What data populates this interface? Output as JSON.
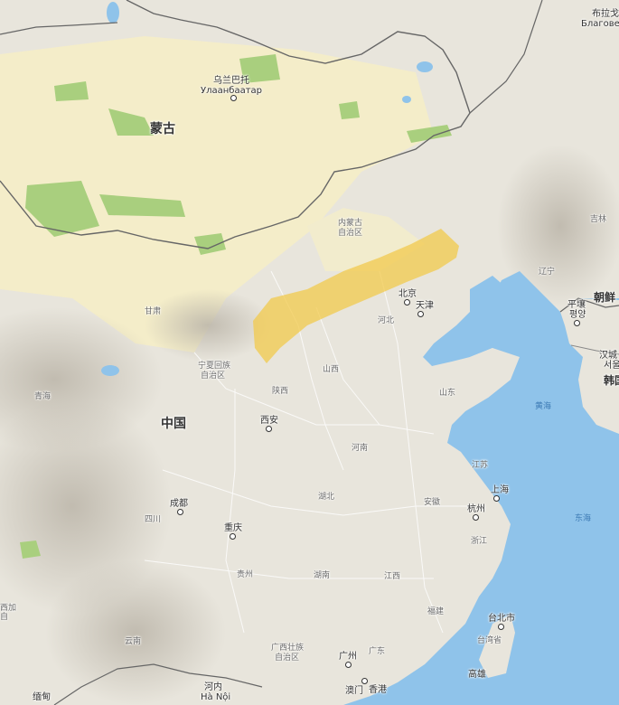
{
  "map": {
    "highlight_color": "#f2c94c",
    "water_color": "#8fc3ea",
    "land_color": "#e8e5dc",
    "desert_color": "#f4edc9",
    "park_color": "#a9cf7e",
    "labels": {
      "mongolia": "蒙古",
      "china": "中国",
      "ulaanbaatar_cn": "乌兰巴托",
      "ulaanbaatar_mn": "Улаанбаатар",
      "blagoveshchensk_cn": "布拉戈",
      "blagoveshchensk_ru": "Благовеще",
      "inner_mongolia_1": "内蒙古",
      "inner_mongolia_2": "自治区",
      "jilin": "吉林",
      "liaoning": "辽宁",
      "beijing": "北京",
      "tianjin": "天津",
      "hebei": "河北",
      "pyongyang_1": "平壤",
      "pyongyang_2": "평양",
      "north_korea": "朝鲜",
      "seoul_1": "汉城",
      "seoul_2": "서울",
      "south_korea": "韩国",
      "gansu": "甘肃",
      "ningxia_1": "宁夏回族",
      "ningxia_2": "自治区",
      "shanxi": "山西",
      "shandong": "山东",
      "yellow_sea": "黄海",
      "qinghai": "青海",
      "shaanxi": "陕西",
      "xian": "西安",
      "henan": "河南",
      "jiangsu": "江苏",
      "shanghai": "上海",
      "hubei": "湖北",
      "anhui": "安徽",
      "hangzhou": "杭州",
      "zhejiang": "浙江",
      "east_sea": "东海",
      "chengdu": "成都",
      "sichuan": "四川",
      "chongqing": "重庆",
      "guizhou": "贵州",
      "hunan": "湖南",
      "jiangxi": "江西",
      "fujian": "福建",
      "taipei": "台北市",
      "taiwan": "台湾省",
      "kaohsiung": "高雄",
      "yunnan": "云南",
      "guangxi_1": "广西壮族",
      "guangxi_2": "自治区",
      "guangzhou": "广州",
      "guangdong": "广东",
      "macau": "澳门",
      "hongkong": "香港",
      "hanoi_cn": "河内",
      "hanoi_vi": "Hà Nội",
      "myanmar": "缅甸",
      "xinjiang_part": "西加",
      "tibet_part": "自"
    }
  }
}
